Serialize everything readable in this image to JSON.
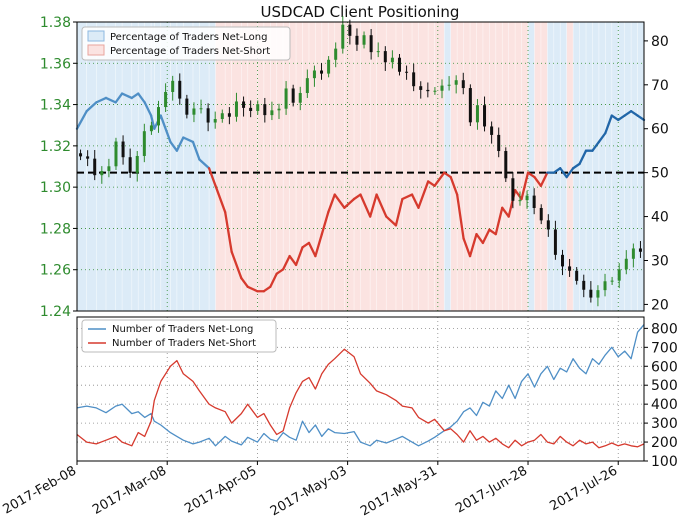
{
  "title": "USDCAD Client Positioning",
  "colors": {
    "price_up": "#2e8b2e",
    "price_down": "#111111",
    "pct_long": "#4f8fc6",
    "pct_long_dark": "#2166a8",
    "pct_short": "#d63a2e",
    "bg_long": "#dcebf7",
    "bg_short": "#fbe3e1",
    "left_axis_text": "#2e8b2e",
    "grid": "#2e8b2e"
  },
  "chart_data": [
    {
      "type": "line",
      "panel": "top",
      "title": "USDCAD Client Positioning",
      "legend": {
        "placement": "top-left",
        "entries": [
          "Percentage of Traders Net-Long",
          "Percentage of Traders Net-Short"
        ]
      },
      "y_left_ticks": [
        "1.24",
        "1.26",
        "1.28",
        "1.30",
        "1.32",
        "1.34",
        "1.36",
        "1.38"
      ],
      "y_left_range": [
        1.24,
        1.38
      ],
      "y_right_ticks": [
        "20",
        "30",
        "40",
        "50",
        "60",
        "70",
        "80"
      ],
      "y_right_range": [
        18.5,
        84.3
      ],
      "x_ticks": [
        "2017-Feb-08",
        "2017-Mar-08",
        "2017-Apr-05",
        "2017-May-03",
        "2017-May-31",
        "2017-Jun-28",
        "2017-Jul-26"
      ],
      "reference_line": 50,
      "grid": true,
      "series": [
        {
          "name": "Percentage of Traders Net-Long",
          "axis": "right",
          "x": [
            0,
            3,
            6,
            9,
            12,
            14,
            17,
            19,
            21,
            23,
            24,
            26,
            29,
            31,
            33,
            36,
            38,
            41,
            43,
            46,
            48,
            51,
            53,
            56,
            58,
            60,
            62,
            64,
            66,
            68,
            70,
            72,
            74,
            76,
            78,
            80,
            83,
            86,
            88,
            91,
            93,
            96,
            99,
            101,
            104,
            106,
            109,
            111,
            114,
            116,
            118,
            120,
            122,
            124,
            126,
            128,
            130,
            132,
            134,
            136,
            138,
            140,
            142,
            144,
            146,
            148,
            150,
            152,
            154,
            156,
            158,
            160,
            162,
            164,
            166,
            168,
            170,
            172,
            174,
            176
          ],
          "y": [
            60,
            64,
            66,
            67,
            66,
            68,
            67,
            68,
            66,
            63,
            60,
            63,
            57,
            55,
            58,
            57,
            53,
            51,
            47,
            41,
            32,
            26,
            24,
            23,
            23,
            24,
            27,
            28,
            31,
            29,
            33,
            34,
            31,
            36,
            41,
            45,
            42,
            44,
            45,
            40,
            45,
            40,
            38,
            44,
            45,
            42,
            48,
            47,
            50,
            49,
            45,
            35,
            31,
            36,
            34,
            37,
            36,
            42,
            40,
            46,
            44,
            50,
            49,
            47,
            50,
            50,
            51,
            49,
            51,
            52,
            55,
            55,
            57,
            59,
            63,
            62,
            63,
            64,
            63,
            62
          ]
        },
        {
          "name": "Percentage of Traders Net-Short",
          "axis": "right",
          "x": [
            0,
            3,
            6,
            9,
            12,
            14,
            17,
            19,
            21,
            23,
            24,
            26,
            29,
            31,
            33,
            36,
            38,
            41,
            43,
            46,
            48,
            51,
            53,
            56,
            58,
            60,
            62,
            64,
            66,
            68,
            70,
            72,
            74,
            76,
            78,
            80,
            83,
            86,
            88,
            91,
            93,
            96,
            99,
            101,
            104,
            106,
            109,
            111,
            114,
            116,
            118,
            120,
            122,
            124,
            126,
            128,
            130,
            132,
            134,
            136,
            138,
            140,
            142,
            144,
            146,
            148,
            150,
            152,
            154,
            156,
            158,
            160,
            162,
            164,
            166,
            168,
            170,
            172,
            174,
            176
          ],
          "y": [
            40,
            36,
            34,
            33,
            34,
            32,
            33,
            32,
            34,
            37,
            40,
            37,
            43,
            45,
            42,
            43,
            47,
            49,
            53,
            59,
            68,
            74,
            76,
            77,
            77,
            76,
            73,
            72,
            69,
            71,
            67,
            66,
            69,
            64,
            59,
            55,
            58,
            56,
            55,
            60,
            55,
            60,
            62,
            56,
            55,
            58,
            52,
            53,
            50,
            51,
            55,
            65,
            69,
            64,
            66,
            63,
            64,
            58,
            60,
            54,
            56,
            50,
            51,
            53,
            50,
            50,
            49,
            51,
            49,
            48,
            45,
            45,
            43,
            41,
            37,
            38,
            37,
            36,
            37,
            38
          ]
        },
        {
          "name": "USDCAD",
          "axis": "left",
          "style": "candles",
          "close": [
            1.3149,
            1.3138,
            1.3058,
            1.3078,
            1.3101,
            1.3221,
            1.3145,
            1.3069,
            1.3151,
            1.3271,
            1.3299,
            1.3388,
            1.3461,
            1.3515,
            1.3429,
            1.3351,
            1.3381,
            1.3382,
            1.3313,
            1.333,
            1.3358,
            1.3341,
            1.3415,
            1.3384,
            1.3369,
            1.3402,
            1.3349,
            1.3372,
            1.338,
            1.3478,
            1.3409,
            1.3456,
            1.3528,
            1.3565,
            1.355,
            1.3617,
            1.3671,
            1.3787,
            1.3733,
            1.369,
            1.3736,
            1.3654,
            1.3659,
            1.3605,
            1.3627,
            1.3559,
            1.3556,
            1.3489,
            1.3471,
            1.3465,
            1.3467,
            1.3492,
            1.3496,
            1.3518,
            1.348,
            1.3314,
            1.3397,
            1.3294,
            1.3253,
            1.3175,
            1.3043,
            1.2934,
            1.2937,
            1.2959,
            1.2899,
            1.2839,
            1.2795,
            1.2672,
            1.2616,
            1.2595,
            1.2546,
            1.2503,
            1.2465,
            1.2501,
            1.2544,
            1.2547,
            1.2602,
            1.2653,
            1.2703,
            1.2687
          ]
        }
      ]
    },
    {
      "type": "line",
      "panel": "bottom",
      "legend": {
        "placement": "top-left",
        "entries": [
          "Number of Traders Net-Long",
          "Number of Traders Net-Short"
        ]
      },
      "y_right_ticks": [
        "100",
        "200",
        "300",
        "400",
        "500",
        "600",
        "700",
        "800"
      ],
      "y_right_range": [
        100,
        860
      ],
      "grid": true,
      "series": [
        {
          "name": "Number of Traders Net-Long",
          "x": [
            0,
            3,
            6,
            9,
            12,
            14,
            17,
            19,
            21,
            23,
            24,
            26,
            29,
            31,
            33,
            36,
            38,
            41,
            43,
            46,
            48,
            51,
            53,
            56,
            58,
            60,
            62,
            64,
            66,
            68,
            70,
            72,
            74,
            76,
            78,
            80,
            83,
            86,
            88,
            91,
            93,
            96,
            99,
            101,
            104,
            106,
            109,
            111,
            114,
            116,
            118,
            120,
            122,
            124,
            126,
            128,
            130,
            132,
            134,
            136,
            138,
            140,
            142,
            144,
            146,
            148,
            150,
            152,
            154,
            156,
            158,
            160,
            162,
            164,
            166,
            168,
            170,
            172,
            174,
            176
          ],
          "y": [
            380,
            390,
            380,
            355,
            390,
            400,
            350,
            360,
            330,
            350,
            310,
            290,
            250,
            230,
            210,
            190,
            200,
            220,
            180,
            230,
            205,
            185,
            225,
            200,
            245,
            215,
            205,
            250,
            225,
            210,
            310,
            250,
            290,
            230,
            270,
            250,
            245,
            255,
            200,
            180,
            210,
            195,
            215,
            230,
            200,
            180,
            205,
            225,
            260,
            280,
            310,
            360,
            380,
            340,
            410,
            390,
            470,
            430,
            500,
            430,
            520,
            560,
            490,
            560,
            600,
            530,
            590,
            570,
            640,
            590,
            560,
            640,
            610,
            660,
            700,
            650,
            680,
            640,
            780,
            820
          ]
        },
        {
          "name": "Number of Traders Net-Short",
          "x": [
            0,
            3,
            6,
            9,
            12,
            14,
            17,
            19,
            21,
            23,
            24,
            26,
            29,
            31,
            33,
            36,
            38,
            41,
            43,
            46,
            48,
            51,
            53,
            56,
            58,
            60,
            62,
            64,
            66,
            68,
            70,
            72,
            74,
            76,
            78,
            80,
            83,
            86,
            88,
            91,
            93,
            96,
            99,
            101,
            104,
            106,
            109,
            111,
            114,
            116,
            118,
            120,
            122,
            124,
            126,
            128,
            130,
            132,
            134,
            136,
            138,
            140,
            142,
            144,
            146,
            148,
            150,
            152,
            154,
            156,
            158,
            160,
            162,
            164,
            166,
            168,
            170,
            172,
            174,
            176
          ],
          "y": [
            240,
            200,
            190,
            210,
            230,
            200,
            180,
            250,
            230,
            310,
            420,
            520,
            600,
            630,
            560,
            520,
            470,
            400,
            380,
            360,
            300,
            350,
            400,
            330,
            350,
            290,
            240,
            260,
            380,
            460,
            520,
            540,
            480,
            560,
            610,
            640,
            690,
            650,
            560,
            510,
            470,
            450,
            420,
            390,
            380,
            330,
            300,
            320,
            260,
            270,
            240,
            200,
            260,
            210,
            230,
            200,
            220,
            190,
            170,
            210,
            180,
            200,
            210,
            240,
            200,
            190,
            230,
            200,
            180,
            210,
            190,
            200,
            170,
            180,
            195,
            180,
            190,
            180,
            175,
            190
          ]
        }
      ]
    }
  ]
}
